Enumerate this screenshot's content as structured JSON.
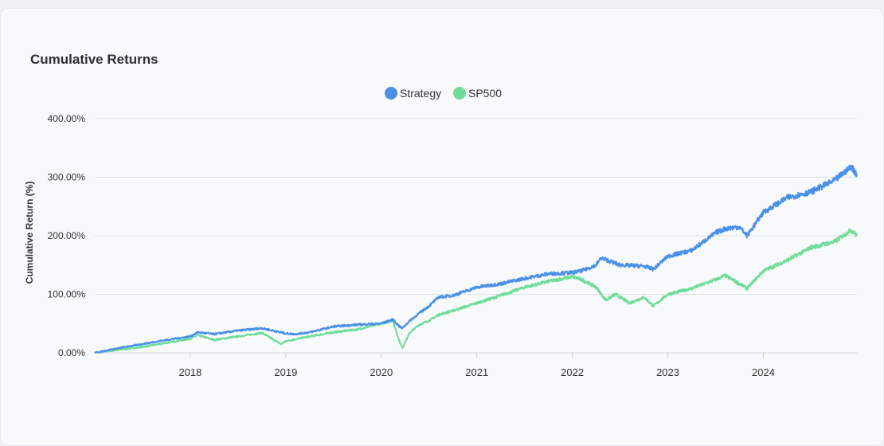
{
  "chart_data": {
    "type": "line",
    "title": "Cumulative Returns",
    "ylabel": "Cumulative Return (%)",
    "xlabel": "",
    "ylim": [
      0,
      400
    ],
    "xlim": [
      2017.0,
      2024.98
    ],
    "y_ticks": [
      "0.00%",
      "100.00%",
      "200.00%",
      "300.00%",
      "400.00%"
    ],
    "y_tick_values": [
      0,
      100,
      200,
      300,
      400
    ],
    "x_ticks": [
      "2018",
      "2019",
      "2020",
      "2021",
      "2022",
      "2023",
      "2024"
    ],
    "x_tick_values": [
      2018,
      2019,
      2020,
      2021,
      2022,
      2023,
      2024
    ],
    "grid": true,
    "legend": "top-center",
    "series": [
      {
        "name": "Strategy",
        "color": "#4a90e8",
        "x": [
          2017.0,
          2017.25,
          2017.5,
          2017.75,
          2018.0,
          2018.08,
          2018.25,
          2018.5,
          2018.75,
          2019.0,
          2019.1,
          2019.25,
          2019.5,
          2019.75,
          2020.0,
          2020.12,
          2020.19,
          2020.22,
          2020.3,
          2020.4,
          2020.5,
          2020.6,
          2020.75,
          2021.0,
          2021.25,
          2021.5,
          2021.75,
          2022.0,
          2022.1,
          2022.25,
          2022.3,
          2022.5,
          2022.75,
          2022.85,
          2023.0,
          2023.25,
          2023.5,
          2023.6,
          2023.75,
          2023.83,
          2024.0,
          2024.25,
          2024.5,
          2024.75,
          2024.92,
          2024.98
        ],
        "y": [
          0,
          8,
          15,
          22,
          28,
          35,
          32,
          38,
          42,
          33,
          32,
          35,
          45,
          48,
          50,
          57,
          45,
          42,
          55,
          68,
          80,
          95,
          98,
          112,
          118,
          127,
          135,
          137,
          140,
          150,
          162,
          150,
          148,
          143,
          165,
          175,
          205,
          212,
          215,
          200,
          240,
          265,
          275,
          295,
          318,
          305
        ]
      },
      {
        "name": "SP500",
        "color": "#6fdc9a",
        "x": [
          2017.0,
          2017.25,
          2017.5,
          2017.75,
          2018.0,
          2018.08,
          2018.25,
          2018.5,
          2018.75,
          2018.95,
          2019.0,
          2019.25,
          2019.5,
          2019.75,
          2020.0,
          2020.12,
          2020.19,
          2020.22,
          2020.3,
          2020.4,
          2020.5,
          2020.6,
          2020.75,
          2021.0,
          2021.25,
          2021.5,
          2021.75,
          2022.0,
          2022.1,
          2022.25,
          2022.35,
          2022.45,
          2022.6,
          2022.75,
          2022.85,
          2023.0,
          2023.25,
          2023.5,
          2023.6,
          2023.75,
          2023.83,
          2024.0,
          2024.25,
          2024.5,
          2024.75,
          2024.92,
          2024.98
        ],
        "y": [
          0,
          5,
          10,
          17,
          24,
          30,
          22,
          28,
          34,
          15,
          20,
          28,
          35,
          40,
          50,
          55,
          20,
          8,
          35,
          48,
          55,
          65,
          72,
          85,
          98,
          112,
          122,
          130,
          125,
          112,
          90,
          100,
          85,
          95,
          80,
          100,
          110,
          125,
          132,
          118,
          110,
          140,
          158,
          180,
          190,
          210,
          200
        ]
      }
    ]
  }
}
